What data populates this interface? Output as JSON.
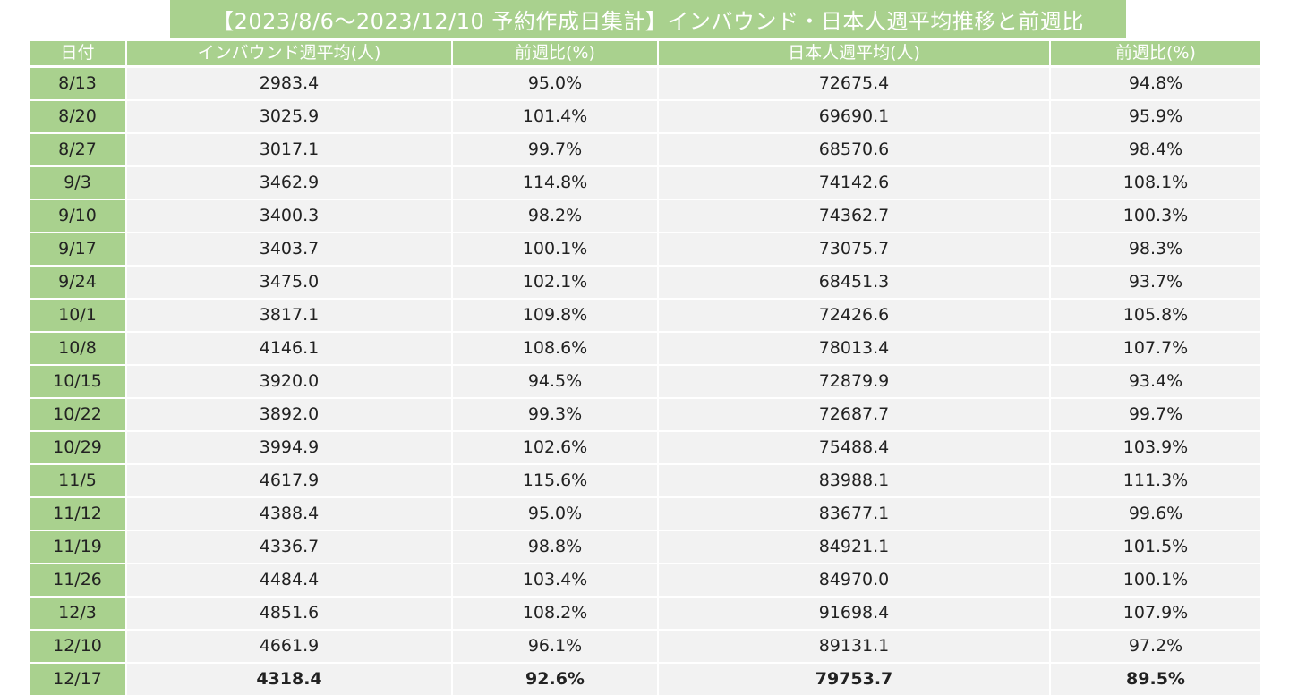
{
  "title": "【2023/8/6～2023/12/10 予約作成日集計】インバウンド・日本人週平均推移と前週比",
  "headers": {
    "date": "日付",
    "inbound_avg": "インバウンド週平均(人)",
    "inbound_wow": "前週比(%)",
    "japanese_avg": "日本人週平均(人)",
    "japanese_wow": "前週比(%)"
  },
  "rows": [
    {
      "date": "8/13",
      "inbound_avg": "2983.4",
      "inbound_wow": "95.0%",
      "japanese_avg": "72675.4",
      "japanese_wow": "94.8%"
    },
    {
      "date": "8/20",
      "inbound_avg": "3025.9",
      "inbound_wow": "101.4%",
      "japanese_avg": "69690.1",
      "japanese_wow": "95.9%"
    },
    {
      "date": "8/27",
      "inbound_avg": "3017.1",
      "inbound_wow": "99.7%",
      "japanese_avg": "68570.6",
      "japanese_wow": "98.4%"
    },
    {
      "date": "9/3",
      "inbound_avg": "3462.9",
      "inbound_wow": "114.8%",
      "japanese_avg": "74142.6",
      "japanese_wow": "108.1%"
    },
    {
      "date": "9/10",
      "inbound_avg": "3400.3",
      "inbound_wow": "98.2%",
      "japanese_avg": "74362.7",
      "japanese_wow": "100.3%"
    },
    {
      "date": "9/17",
      "inbound_avg": "3403.7",
      "inbound_wow": "100.1%",
      "japanese_avg": "73075.7",
      "japanese_wow": "98.3%"
    },
    {
      "date": "9/24",
      "inbound_avg": "3475.0",
      "inbound_wow": "102.1%",
      "japanese_avg": "68451.3",
      "japanese_wow": "93.7%"
    },
    {
      "date": "10/1",
      "inbound_avg": "3817.1",
      "inbound_wow": "109.8%",
      "japanese_avg": "72426.6",
      "japanese_wow": "105.8%"
    },
    {
      "date": "10/8",
      "inbound_avg": "4146.1",
      "inbound_wow": "108.6%",
      "japanese_avg": "78013.4",
      "japanese_wow": "107.7%"
    },
    {
      "date": "10/15",
      "inbound_avg": "3920.0",
      "inbound_wow": "94.5%",
      "japanese_avg": "72879.9",
      "japanese_wow": "93.4%"
    },
    {
      "date": "10/22",
      "inbound_avg": "3892.0",
      "inbound_wow": "99.3%",
      "japanese_avg": "72687.7",
      "japanese_wow": "99.7%"
    },
    {
      "date": "10/29",
      "inbound_avg": "3994.9",
      "inbound_wow": "102.6%",
      "japanese_avg": "75488.4",
      "japanese_wow": "103.9%"
    },
    {
      "date": "11/5",
      "inbound_avg": "4617.9",
      "inbound_wow": "115.6%",
      "japanese_avg": "83988.1",
      "japanese_wow": "111.3%"
    },
    {
      "date": "11/12",
      "inbound_avg": "4388.4",
      "inbound_wow": "95.0%",
      "japanese_avg": "83677.1",
      "japanese_wow": "99.6%"
    },
    {
      "date": "11/19",
      "inbound_avg": "4336.7",
      "inbound_wow": "98.8%",
      "japanese_avg": "84921.1",
      "japanese_wow": "101.5%"
    },
    {
      "date": "11/26",
      "inbound_avg": "4484.4",
      "inbound_wow": "103.4%",
      "japanese_avg": "84970.0",
      "japanese_wow": "100.1%"
    },
    {
      "date": "12/3",
      "inbound_avg": "4851.6",
      "inbound_wow": "108.2%",
      "japanese_avg": "91698.4",
      "japanese_wow": "107.9%"
    },
    {
      "date": "12/10",
      "inbound_avg": "4661.9",
      "inbound_wow": "96.1%",
      "japanese_avg": "89131.1",
      "japanese_wow": "97.2%"
    },
    {
      "date": "12/17",
      "inbound_avg": "4318.4",
      "inbound_wow": "92.6%",
      "japanese_avg": "79753.7",
      "japanese_wow": "89.5%"
    }
  ],
  "colors": {
    "header_green": "#a9d18e",
    "cell_gray": "#f2f2f2",
    "text_dark": "#222222",
    "header_text": "#ffffff"
  }
}
